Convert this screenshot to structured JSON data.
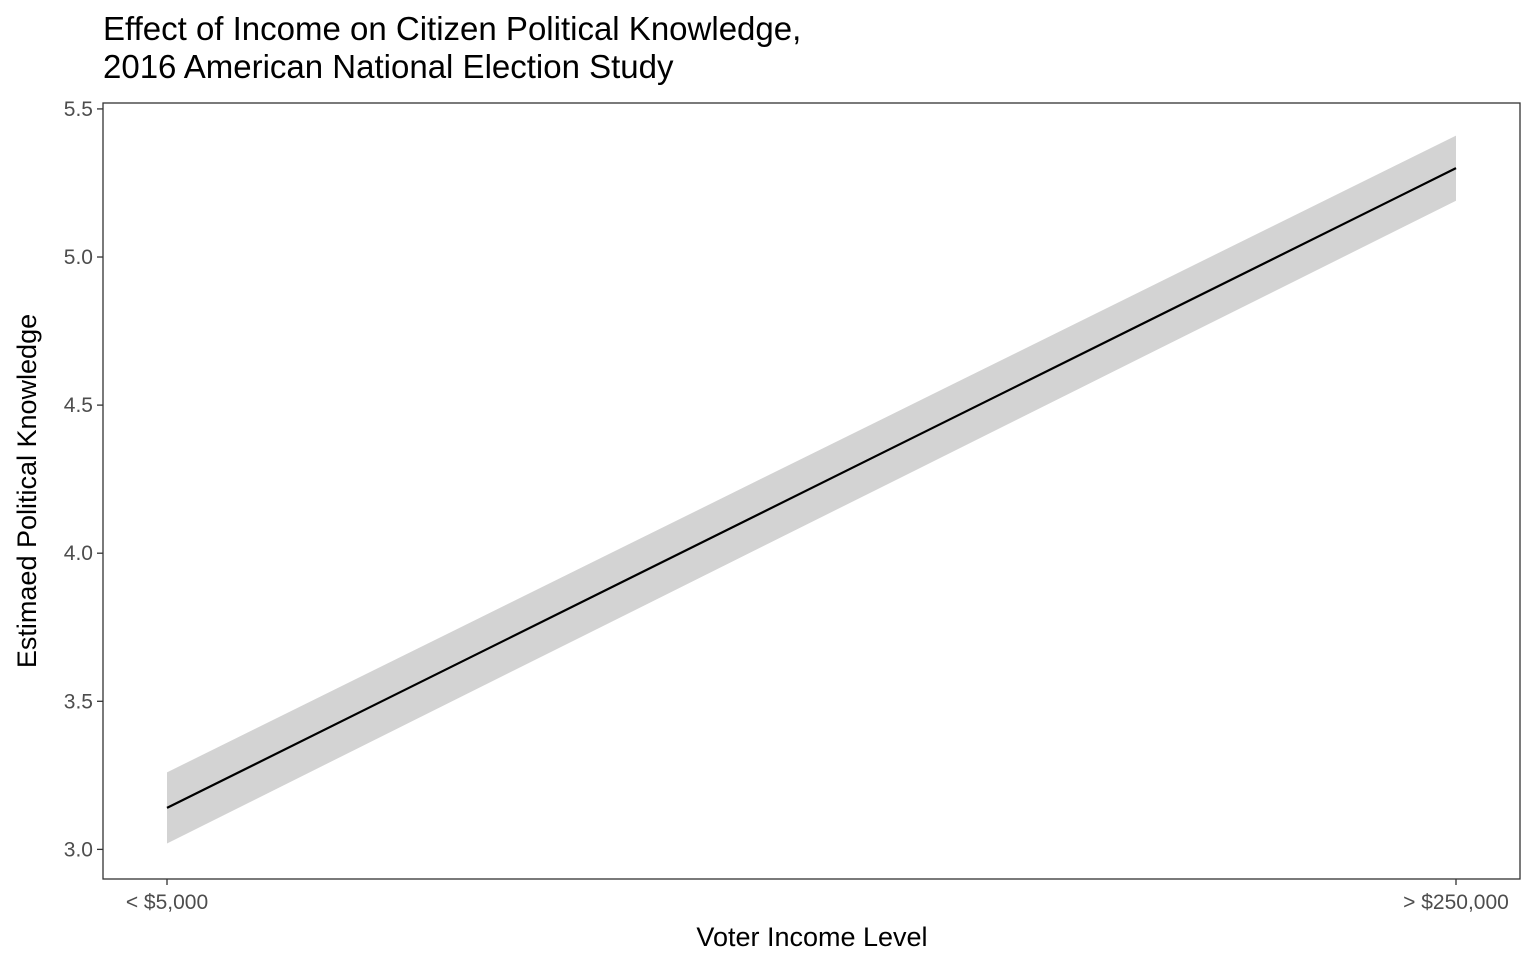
{
  "chart_data": {
    "type": "line",
    "title": "Effect of Income on Citizen Political Knowledge,",
    "subtitle": "2016 American National Election Study",
    "xlabel": "Voter Income Level",
    "ylabel": "Estimaed Political Knowledge",
    "x_tick_labels": [
      "< $5,000",
      "> $250,000"
    ],
    "y_ticks": [
      3.0,
      3.5,
      4.0,
      4.5,
      5.0,
      5.5
    ],
    "y_tick_labels": [
      "3.0",
      "3.5",
      "4.0",
      "4.5",
      "5.0",
      "5.5"
    ],
    "ylim": [
      2.9,
      5.52
    ],
    "grid": false,
    "series": [
      {
        "x": [
          "< $5,000",
          "> $250,000"
        ],
        "values": [
          3.14,
          5.3
        ],
        "ci_lower": [
          3.02,
          5.19
        ],
        "ci_upper": [
          3.26,
          5.41
        ],
        "color": "#000000",
        "ribbon_color": "#d3d3d3"
      }
    ]
  }
}
